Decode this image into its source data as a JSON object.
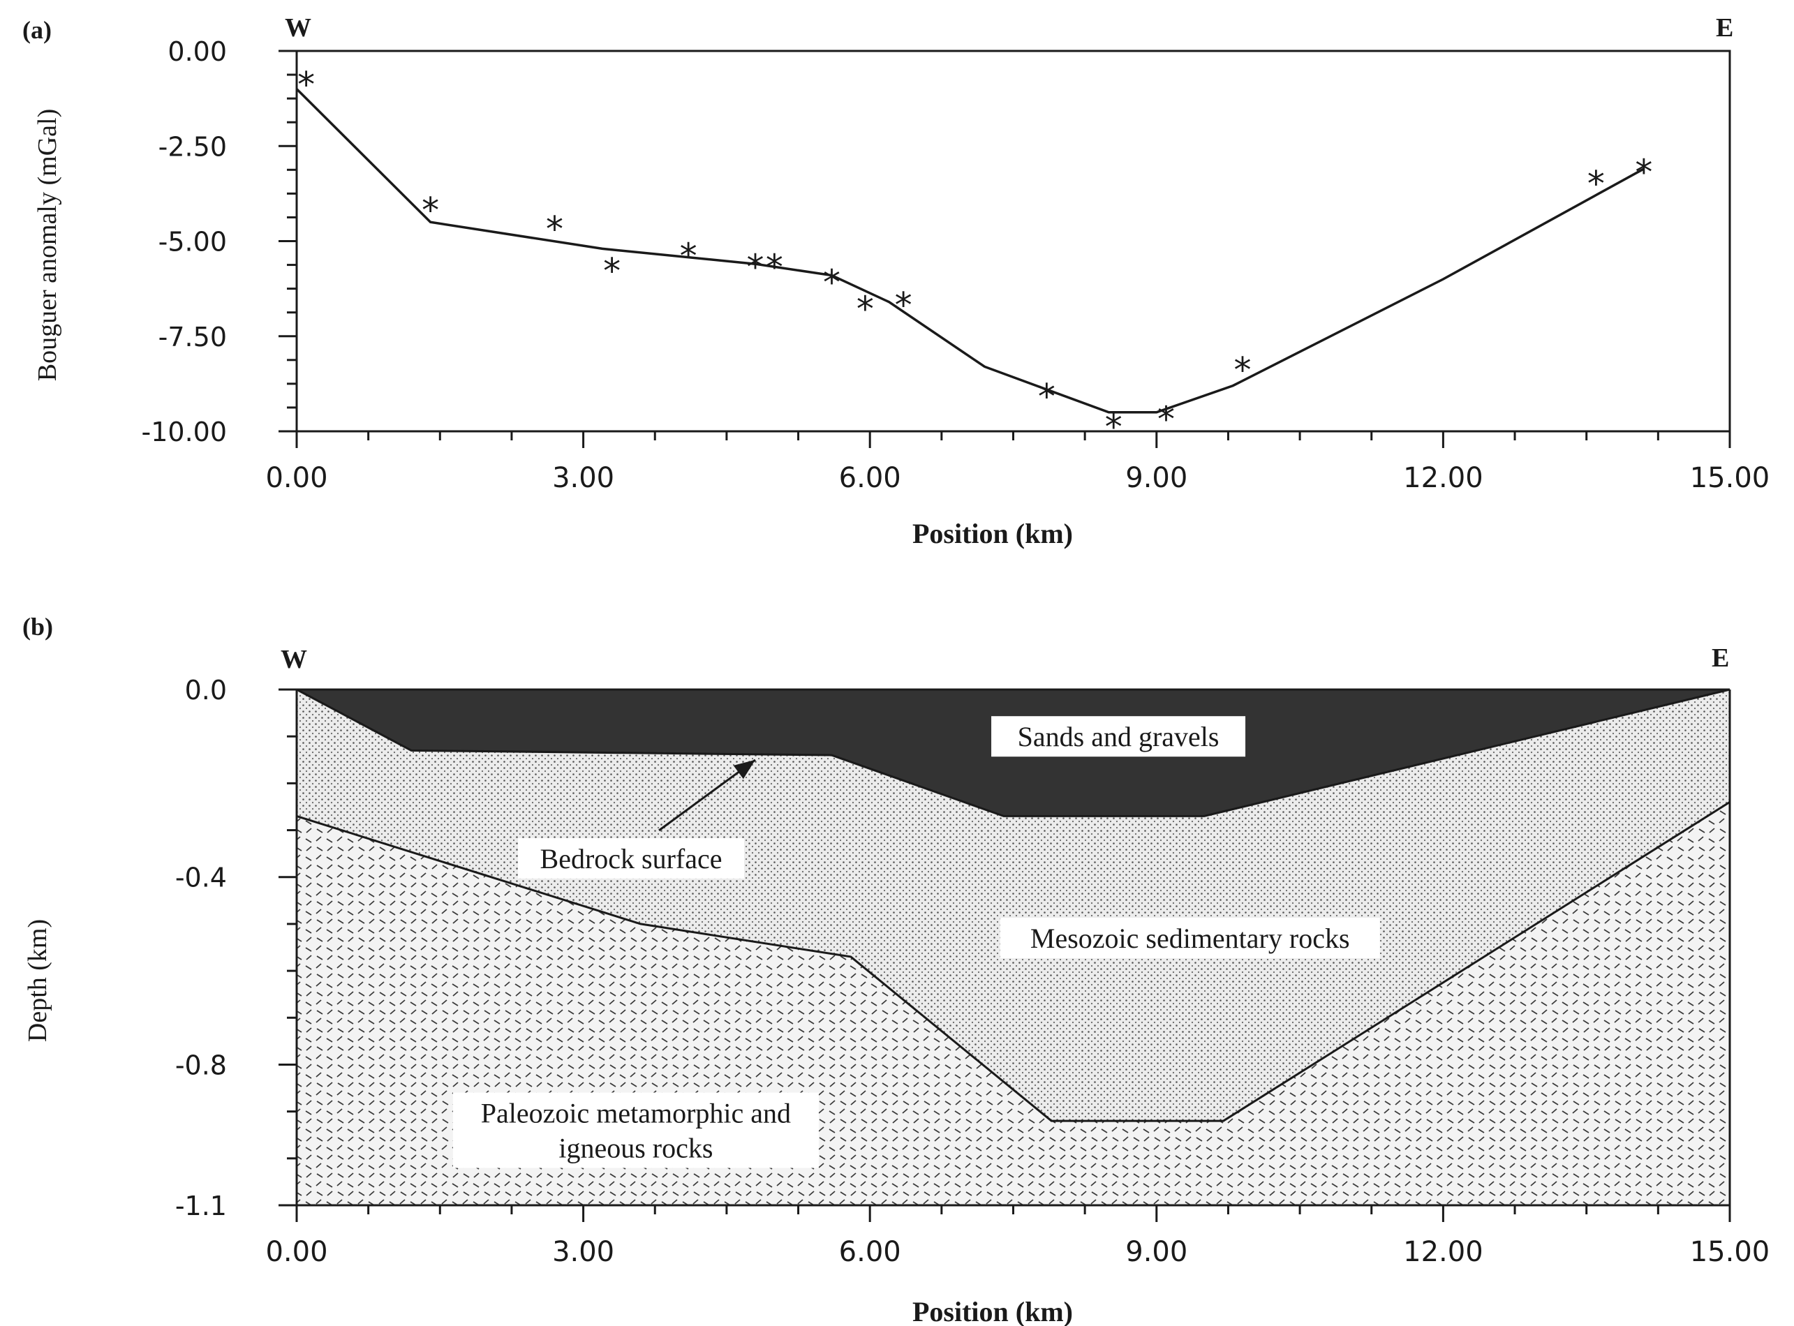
{
  "panels": {
    "a": {
      "label": "(a)",
      "west": "W",
      "east": "E"
    },
    "b": {
      "label": "(b)",
      "west": "W",
      "east": "E"
    }
  },
  "chart_data": [
    {
      "type": "scatter",
      "panel": "(a)",
      "title": "",
      "xlabel": "Position (km)",
      "ylabel": "Bouguer anomaly (mGal)",
      "xlim": [
        0,
        15
      ],
      "ylim": [
        -10,
        0
      ],
      "x_ticks": [
        "0.00",
        "3.00",
        "6.00",
        "9.00",
        "12.00",
        "15.00"
      ],
      "y_ticks": [
        "0.00",
        "-2.50",
        "-5.00",
        "-7.50",
        "-10.00"
      ],
      "x_tick_values": [
        0,
        3,
        6,
        9,
        12,
        15
      ],
      "y_tick_values": [
        0,
        -2.5,
        -5,
        -7.5,
        -10
      ],
      "series": [
        {
          "kind": "observed",
          "marker": "*",
          "x": [
            0.1,
            1.4,
            2.7,
            3.3,
            4.1,
            4.8,
            5.0,
            5.6,
            5.95,
            6.35,
            7.85,
            8.55,
            9.1,
            9.9,
            13.6,
            14.1
          ],
          "y": [
            -0.8,
            -4.1,
            -4.6,
            -5.7,
            -5.3,
            -5.6,
            -5.6,
            -6.0,
            -6.7,
            -6.6,
            -9.0,
            -9.8,
            -9.6,
            -8.3,
            -3.4,
            -3.1
          ]
        },
        {
          "kind": "model",
          "x": [
            0.0,
            1.4,
            3.2,
            4.8,
            5.6,
            6.2,
            7.2,
            8.5,
            9.0,
            9.8,
            12.0,
            14.1
          ],
          "y": [
            -1.0,
            -4.5,
            -5.2,
            -5.6,
            -5.9,
            -6.6,
            -8.3,
            -9.5,
            -9.5,
            -8.8,
            -6.0,
            -3.1
          ]
        }
      ]
    },
    {
      "type": "area",
      "panel": "(b)",
      "title": "",
      "xlabel": "Position (km)",
      "ylabel": "Depth (km)",
      "xlim": [
        0,
        15
      ],
      "ylim": [
        -1.1,
        0
      ],
      "x_ticks": [
        "0.00",
        "3.00",
        "6.00",
        "9.00",
        "12.00",
        "15.00"
      ],
      "y_ticks": [
        "0.0",
        "-0.4",
        "-0.8",
        "-1.1"
      ],
      "x_tick_values": [
        0,
        3,
        6,
        9,
        12,
        15
      ],
      "y_tick_values": [
        0,
        -0.4,
        -0.8,
        -1.1
      ],
      "layers": [
        {
          "name": "Sands and gravels",
          "color": "#333333",
          "pattern": "solid",
          "label_x": 8.6,
          "label_y": -0.1,
          "boundary": {
            "x": [
              0.0,
              1.2,
              5.6,
              7.4,
              9.5,
              15.0
            ],
            "y": [
              0.0,
              -0.13,
              -0.14,
              -0.27,
              -0.27,
              0.0
            ]
          }
        },
        {
          "name": "Mesozoic sedimentary rocks",
          "color": "#ececec",
          "pattern": "dots",
          "label_x": 9.35,
          "label_y": -0.53,
          "boundary": {
            "x": [
              0.0,
              3.6,
              5.8,
              7.9,
              9.7,
              15.0
            ],
            "y": [
              -0.27,
              -0.5,
              -0.57,
              -0.92,
              -0.92,
              -0.24
            ]
          }
        },
        {
          "name": "Paleozoic metamorphic and igneous rocks",
          "label_lines": [
            "Paleozoic metamorphic and",
            "igneous rocks"
          ],
          "color": "#f3f3f3",
          "pattern": "dashes",
          "label_x": 3.55,
          "label_y": -0.94
        }
      ],
      "annotations": [
        {
          "text": "Bedrock surface",
          "x": 3.5,
          "y": -0.36,
          "arrow_to": [
            4.8,
            -0.15
          ]
        }
      ]
    }
  ]
}
